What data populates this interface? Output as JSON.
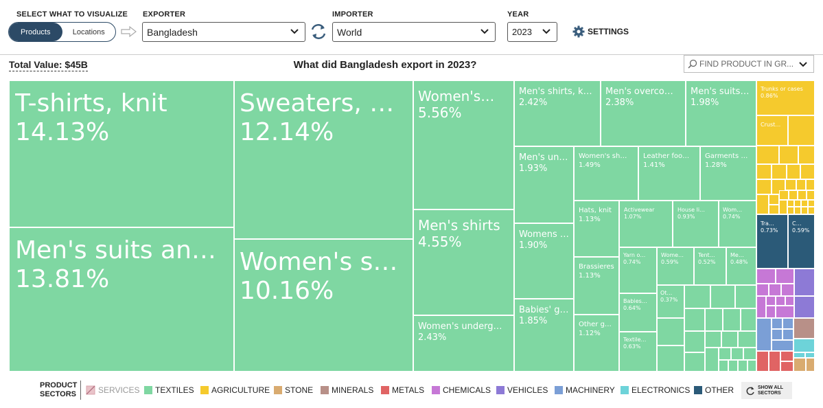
{
  "controls": {
    "visualize_label": "SELECT WHAT TO VISUALIZE",
    "toggle_products": "Products",
    "toggle_locations": "Locations",
    "exporter_label": "EXPORTER",
    "exporter_value": "Bangladesh",
    "importer_label": "IMPORTER",
    "importer_value": "World",
    "year_label": "YEAR",
    "year_value": "2023",
    "settings_label": "SETTINGS"
  },
  "header": {
    "total": "Total Value: $45B",
    "title": "What did Bangladesh export in 2023?",
    "find_placeholder": "FIND PRODUCT IN GR..."
  },
  "colors": {
    "textiles": "#7fd7a2",
    "agriculture": "#f5ca2d",
    "stone": "#d9ab70",
    "minerals": "#b89088",
    "metals": "#e06464",
    "chemicals": "#c678d6",
    "vehicles": "#8d7ad6",
    "machinery": "#7b9fd6",
    "electronics": "#6dd3d9",
    "other": "#2b5a78",
    "services": "#d9a3ac",
    "toggle_active": "#2c4a66"
  },
  "treemap": {
    "tshirts": {
      "name": "T-shirts, knit",
      "pct": "14.13%"
    },
    "mensuits": {
      "name": "Men's suits and…",
      "pct": "13.81%"
    },
    "sweaters": {
      "name": "Sweaters, p…",
      "pct": "12.14%"
    },
    "womens_s": {
      "name": "Women's s…",
      "pct": "10.16%"
    },
    "womens_556": {
      "name": "Women's…",
      "pct": "5.56%"
    },
    "mens_shirts": {
      "name": "Men's shirts",
      "pct": "4.55%"
    },
    "womens_underg": {
      "name": "Women's underg…",
      "pct": "2.43%"
    },
    "mens_shirts_k": {
      "name": "Men's shirts, k…",
      "pct": "2.42%"
    },
    "mens_overco": {
      "name": "Men's overco…",
      "pct": "2.38%"
    },
    "mens_suits_198": {
      "name": "Men's suits,…",
      "pct": "1.98%"
    },
    "mens_un": {
      "name": "Men's un…",
      "pct": "1.93%"
    },
    "womens_sh": {
      "name": "Women's sh…",
      "pct": "1.49%"
    },
    "leather_foo": {
      "name": "Leather foo…",
      "pct": "1.41%"
    },
    "garments": {
      "name": "Garments …",
      "pct": "1.28%"
    },
    "womens_190": {
      "name": "Womens …",
      "pct": "1.90%"
    },
    "hats": {
      "name": "Hats, knit",
      "pct": "1.13%"
    },
    "activewear": {
      "name": "Activewear",
      "pct": "1.07%"
    },
    "house_li": {
      "name": "House li…",
      "pct": "0.93%"
    },
    "wom_074": {
      "name": "Wom…",
      "pct": "0.74%"
    },
    "brassieres": {
      "name": "Brassieres",
      "pct": "1.13%"
    },
    "yarn": {
      "name": "Yarn o…",
      "pct": "0.74%"
    },
    "wome_059": {
      "name": "Wome…",
      "pct": "0.59%"
    },
    "tent": {
      "name": "Tent…",
      "pct": "0.52%"
    },
    "me_048": {
      "name": "Me…",
      "pct": "0.48%"
    },
    "babies_185": {
      "name": "Babies' g…",
      "pct": "1.85%"
    },
    "other_g": {
      "name": "Other g…",
      "pct": "1.12%"
    },
    "babies_064": {
      "name": "Babies…",
      "pct": "0.64%"
    },
    "ot_037": {
      "name": "Ot…",
      "pct": "0.37%"
    },
    "textile_063": {
      "name": "Textile…",
      "pct": "0.63%"
    },
    "trunks": {
      "name": "Trunks or cases",
      "pct": "0.86%"
    },
    "crust": {
      "name": "Crust…",
      "pct": ""
    },
    "tra": {
      "name": "Tra…",
      "pct": "0.73%"
    },
    "c_059": {
      "name": "C…",
      "pct": "0.59%"
    }
  },
  "legend": {
    "title_line1": "PRODUCT",
    "title_line2": "SECTORS",
    "items": [
      "SERVICES",
      "TEXTILES",
      "AGRICULTURE",
      "STONE",
      "MINERALS",
      "METALS",
      "CHEMICALS",
      "VEHICLES",
      "MACHINERY",
      "ELECTRONICS",
      "OTHER"
    ],
    "show_all_line1": "SHOW ALL",
    "show_all_line2": "SECTORS"
  }
}
